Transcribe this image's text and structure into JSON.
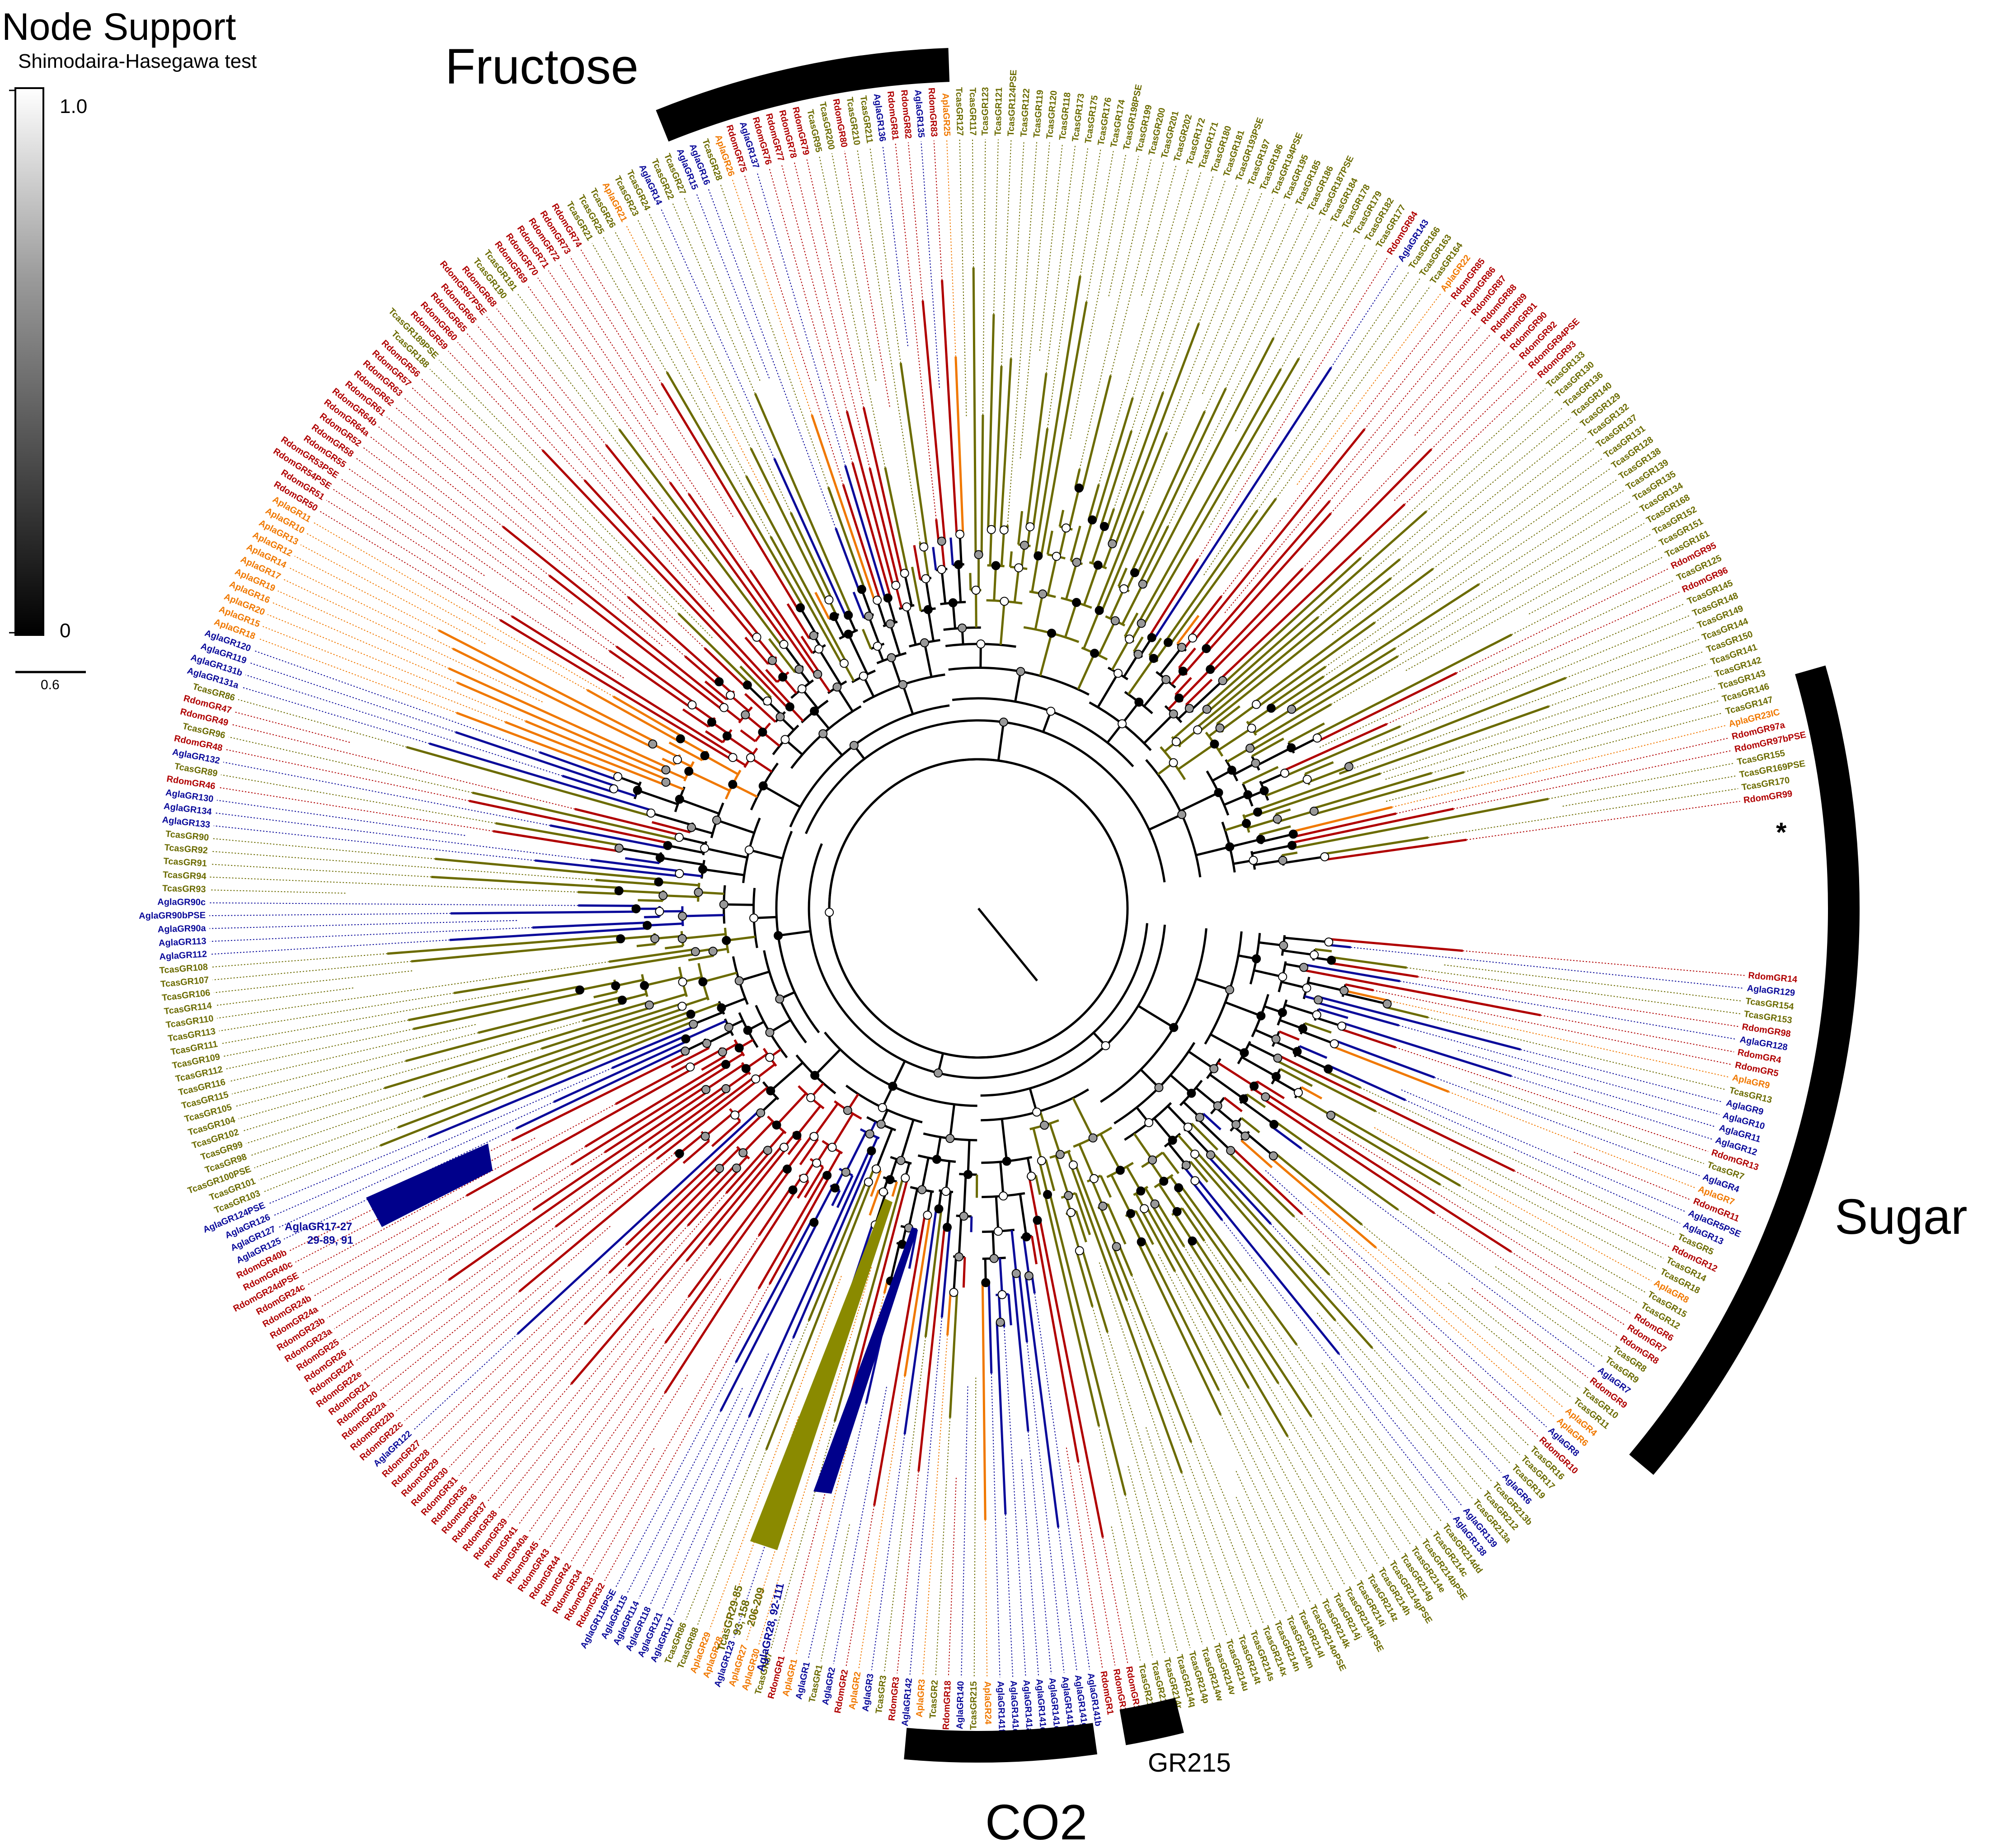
{
  "legend": {
    "title": "Node Support",
    "subtitle": "Shimodaira-Hasegawa test",
    "max_label": "1.0",
    "min_label": "0",
    "branch_scale": "0.6"
  },
  "colors": {
    "Tcas": "#6b6b00",
    "Rdom": "#b00000",
    "Agla": "#0a0a9a",
    "Apla": "#f07800",
    "backbone": "#000000",
    "collapsed_tcas": "#8a8a00",
    "collapsed_agla": "#00008b"
  },
  "clades": {
    "fructose": "Fructose",
    "sugar": "Sugar",
    "co2": "CO2",
    "gr215": "GR215"
  },
  "collapsed": {
    "agla": {
      "line1": "AglaGR17-27",
      "line2": "29-89, 91"
    },
    "tcas": {
      "line1": "TcasGR29-85",
      "line2": "93, 158",
      "line3": "206-209"
    },
    "agla2": {
      "line1": "AglaGR28, 92-111"
    }
  },
  "asterisk_label": "*",
  "leaves": [
    {
      "t": "RdomGR14",
      "g": "R"
    },
    {
      "t": "AglaGR129",
      "g": "A"
    },
    {
      "t": "TcasGR154",
      "g": "T"
    },
    {
      "t": "TcasGR153",
      "g": "T"
    },
    {
      "t": "RdomGR98",
      "g": "R"
    },
    {
      "t": "AglaGR128",
      "g": "A"
    },
    {
      "t": "RdomGR4",
      "g": "R"
    },
    {
      "t": "RdomGR5",
      "g": "R"
    },
    {
      "t": "AplaGR9",
      "g": "P"
    },
    {
      "t": "TcasGR13",
      "g": "T"
    },
    {
      "t": "AglaGR9",
      "g": "A"
    },
    {
      "t": "AglaGR10",
      "g": "A"
    },
    {
      "t": "AglaGR11",
      "g": "A"
    },
    {
      "t": "AglaGR12",
      "g": "A"
    },
    {
      "t": "RdomGR13",
      "g": "R"
    },
    {
      "t": "TcasGR7",
      "g": "T"
    },
    {
      "t": "AglaGR4",
      "g": "A"
    },
    {
      "t": "AplaGR7",
      "g": "P"
    },
    {
      "t": "RdomGR11",
      "g": "R"
    },
    {
      "t": "AglaGR5PSE",
      "g": "A"
    },
    {
      "t": "AglaGR13",
      "g": "A"
    },
    {
      "t": "TcasGR5",
      "g": "T"
    },
    {
      "t": "RdomGR12",
      "g": "R"
    },
    {
      "t": "TcasGR14",
      "g": "T"
    },
    {
      "t": "TcasGR18",
      "g": "T"
    },
    {
      "t": "AplaGR8",
      "g": "P"
    },
    {
      "t": "TcasGR15",
      "g": "T"
    },
    {
      "t": "TcasGR12",
      "g": "T"
    },
    {
      "t": "RdomGR6",
      "g": "R"
    },
    {
      "t": "RdomGR7",
      "g": "R"
    },
    {
      "t": "RdomGR8",
      "g": "R"
    },
    {
      "t": "TcasGR8",
      "g": "T"
    },
    {
      "t": "TcasGR9",
      "g": "T"
    },
    {
      "t": "AglaGR7",
      "g": "A"
    },
    {
      "t": "RdomGR9",
      "g": "R"
    },
    {
      "t": "TcasGR10",
      "g": "T"
    },
    {
      "t": "TcasGR11",
      "g": "T"
    },
    {
      "t": "AplaGR4",
      "g": "P"
    },
    {
      "t": "AplaGR6",
      "g": "P"
    },
    {
      "t": "AglaGR8",
      "g": "A"
    },
    {
      "t": "RdomGR10",
      "g": "R"
    },
    {
      "t": "TcasGR16",
      "g": "T"
    },
    {
      "t": "TcasGR17",
      "g": "T"
    },
    {
      "t": "TcasGR19",
      "g": "T"
    },
    {
      "t": "AglaGR6",
      "g": "A"
    },
    {
      "t": "TcasGR213b",
      "g": "T"
    },
    {
      "t": "TcasGR212",
      "g": "T"
    },
    {
      "t": "TcasGR213a",
      "g": "T"
    },
    {
      "t": "AglaGR139",
      "g": "A"
    },
    {
      "t": "AglaGR138",
      "g": "A"
    },
    {
      "t": "TcasGR214dd",
      "g": "T"
    },
    {
      "t": "TcasGR214c",
      "g": "T"
    },
    {
      "t": "TcasGR214bPSE",
      "g": "T"
    },
    {
      "t": "TcasGR214e",
      "g": "T"
    },
    {
      "t": "TcasGR214g",
      "g": "T"
    },
    {
      "t": "TcasGR214gPSE",
      "g": "T"
    },
    {
      "t": "TcasGR214h",
      "g": "T"
    },
    {
      "t": "TcasGR214z",
      "g": "T"
    },
    {
      "t": "TcasGR214i",
      "g": "T"
    },
    {
      "t": "TcasGR214hPSE",
      "g": "T"
    },
    {
      "t": "TcasGR214j",
      "g": "T"
    },
    {
      "t": "TcasGR214k",
      "g": "T"
    },
    {
      "t": "TcasGR214oPSE",
      "g": "T"
    },
    {
      "t": "TcasGR214l",
      "g": "T"
    },
    {
      "t": "TcasGR214m",
      "g": "T"
    },
    {
      "t": "TcasGR214n",
      "g": "T"
    },
    {
      "t": "TcasGR214x",
      "g": "T"
    },
    {
      "t": "TcasGR214s",
      "g": "T"
    },
    {
      "t": "TcasGR214t",
      "g": "T"
    },
    {
      "t": "TcasGR214u",
      "g": "T"
    },
    {
      "t": "TcasGR214v",
      "g": "T"
    },
    {
      "t": "TcasGR214w",
      "g": "T"
    },
    {
      "t": "TcasGR214p",
      "g": "T"
    },
    {
      "t": "TcasGR214q",
      "g": "T"
    },
    {
      "t": "TcasGR214r",
      "g": "T"
    },
    {
      "t": "TcasGR214a",
      "g": "T"
    },
    {
      "t": "TcasGR214yPSE",
      "g": "T"
    },
    {
      "t": "RdomGR15",
      "g": "R"
    },
    {
      "t": "RdomGR16",
      "g": "R"
    },
    {
      "t": "RdomGR1",
      "g": "R"
    },
    {
      "t": "AglaGR141b",
      "g": "A"
    },
    {
      "t": "AglaGR141g",
      "g": "A"
    },
    {
      "t": "AglaGR141h",
      "g": "A"
    },
    {
      "t": "AglaGR141c",
      "g": "A"
    },
    {
      "t": "AglaGR141d",
      "g": "A"
    },
    {
      "t": "AglaGR141a",
      "g": "A"
    },
    {
      "t": "AglaGR141e",
      "g": "A"
    },
    {
      "t": "AglaGR141f",
      "g": "A"
    },
    {
      "t": "AplaGR24",
      "g": "P"
    },
    {
      "t": "TcasGR215",
      "g": "T"
    },
    {
      "t": "AglaGR140",
      "g": "A"
    },
    {
      "t": "RdomGR18",
      "g": "R"
    },
    {
      "t": "TcasGR2",
      "g": "T"
    },
    {
      "t": "AplaGR3",
      "g": "P"
    },
    {
      "t": "AglaGR142",
      "g": "A"
    },
    {
      "t": "RdomGR3",
      "g": "R"
    },
    {
      "t": "TcasGR3",
      "g": "T"
    },
    {
      "t": "AglaGR3",
      "g": "A"
    },
    {
      "t": "AplaGR2",
      "g": "P"
    },
    {
      "t": "RdomGR2",
      "g": "R"
    },
    {
      "t": "AglaGR2",
      "g": "A"
    },
    {
      "t": "TcasGR1",
      "g": "T"
    },
    {
      "t": "AglaGR1",
      "g": "A"
    },
    {
      "t": "AplaGR1",
      "g": "P"
    },
    {
      "t": "RdomGR1",
      "g": "R"
    },
    {
      "t": "TcasGR87",
      "g": "T"
    },
    {
      "t": "AplaGR30",
      "g": "P"
    },
    {
      "t": "AplaGR27",
      "g": "P"
    },
    {
      "t": "AglaGR123",
      "g": "A"
    },
    {
      "t": "AplaGR28",
      "g": "P"
    },
    {
      "t": "AplaGR29",
      "g": "P"
    },
    {
      "t": "TcasGR88",
      "g": "T"
    },
    {
      "t": "TcasGR86",
      "g": "T"
    },
    {
      "t": "AglaGR117",
      "g": "A"
    },
    {
      "t": "AglaGR121",
      "g": "A"
    },
    {
      "t": "AglaGR118",
      "g": "A"
    },
    {
      "t": "AglaGR114",
      "g": "A"
    },
    {
      "t": "AglaGR115",
      "g": "A"
    },
    {
      "t": "AglaGR116PSE",
      "g": "A"
    },
    {
      "t": "RdomGR32",
      "g": "R"
    },
    {
      "t": "RdomGR33",
      "g": "R"
    },
    {
      "t": "RdomGR34",
      "g": "R"
    },
    {
      "t": "RdomGR42",
      "g": "R"
    },
    {
      "t": "RdomGR44",
      "g": "R"
    },
    {
      "t": "RdomGR43",
      "g": "R"
    },
    {
      "t": "RdomGR45",
      "g": "R"
    },
    {
      "t": "RdomGR40a",
      "g": "R"
    },
    {
      "t": "RdomGR41",
      "g": "R"
    },
    {
      "t": "RdomGR39",
      "g": "R"
    },
    {
      "t": "RdomGR38",
      "g": "R"
    },
    {
      "t": "RdomGR37",
      "g": "R"
    },
    {
      "t": "RdomGR36",
      "g": "R"
    },
    {
      "t": "RdomGR35",
      "g": "R"
    },
    {
      "t": "RdomGR31",
      "g": "R"
    },
    {
      "t": "RdomGR30",
      "g": "R"
    },
    {
      "t": "RdomGR29",
      "g": "R"
    },
    {
      "t": "RdomGR28",
      "g": "R"
    },
    {
      "t": "RdomGR27",
      "g": "R"
    },
    {
      "t": "AglaGR122",
      "g": "A"
    },
    {
      "t": "RdomGR22c",
      "g": "R"
    },
    {
      "t": "RdomGR22b",
      "g": "R"
    },
    {
      "t": "RdomGR22a",
      "g": "R"
    },
    {
      "t": "RdomGR20",
      "g": "R"
    },
    {
      "t": "RdomGR21",
      "g": "R"
    },
    {
      "t": "RdomGR22e",
      "g": "R"
    },
    {
      "t": "RdomGR22f",
      "g": "R"
    },
    {
      "t": "RdomGR26",
      "g": "R"
    },
    {
      "t": "RdomGR25",
      "g": "R"
    },
    {
      "t": "RdomGR23a",
      "g": "R"
    },
    {
      "t": "RdomGR23b",
      "g": "R"
    },
    {
      "t": "RdomGR24a",
      "g": "R"
    },
    {
      "t": "RdomGR24b",
      "g": "R"
    },
    {
      "t": "RdomGR24c",
      "g": "R"
    },
    {
      "t": "RdomGR24dPSE",
      "g": "R"
    },
    {
      "t": "RdomGR40c",
      "g": "R"
    },
    {
      "t": "RdomGR40b",
      "g": "R"
    },
    {
      "t": "AglaGR125",
      "g": "A"
    },
    {
      "t": "AglaGR127",
      "g": "A"
    },
    {
      "t": "AglaGR126",
      "g": "A"
    },
    {
      "t": "AglaGR124PSE",
      "g": "A"
    },
    {
      "t": "TcasGR103",
      "g": "T"
    },
    {
      "t": "TcasGR101",
      "g": "T"
    },
    {
      "t": "TcasGR100PSE",
      "g": "T"
    },
    {
      "t": "TcasGR98",
      "g": "T"
    },
    {
      "t": "TcasGR99",
      "g": "T"
    },
    {
      "t": "TcasGR102",
      "g": "T"
    },
    {
      "t": "TcasGR104",
      "g": "T"
    },
    {
      "t": "TcasGR105",
      "g": "T"
    },
    {
      "t": "TcasGR115",
      "g": "T"
    },
    {
      "t": "TcasGR116",
      "g": "T"
    },
    {
      "t": "TcasGR112",
      "g": "T"
    },
    {
      "t": "TcasGR109",
      "g": "T"
    },
    {
      "t": "TcasGR111",
      "g": "T"
    },
    {
      "t": "TcasGR113",
      "g": "T"
    },
    {
      "t": "TcasGR110",
      "g": "T"
    },
    {
      "t": "TcasGR114",
      "g": "T"
    },
    {
      "t": "TcasGR106",
      "g": "T"
    },
    {
      "t": "TcasGR107",
      "g": "T"
    },
    {
      "t": "TcasGR108",
      "g": "T"
    },
    {
      "t": "AglaGR112",
      "g": "A"
    },
    {
      "t": "AglaGR113",
      "g": "A"
    },
    {
      "t": "AglaGR90a",
      "g": "A"
    },
    {
      "t": "AglaGR90bPSE",
      "g": "A"
    },
    {
      "t": "AglaGR90c",
      "g": "A"
    },
    {
      "t": "TcasGR93",
      "g": "T"
    },
    {
      "t": "TcasGR94",
      "g": "T"
    },
    {
      "t": "TcasGR91",
      "g": "T"
    },
    {
      "t": "TcasGR92",
      "g": "T"
    },
    {
      "t": "TcasGR90",
      "g": "T"
    },
    {
      "t": "AglaGR133",
      "g": "A"
    },
    {
      "t": "AglaGR134",
      "g": "A"
    },
    {
      "t": "AglaGR130",
      "g": "A"
    },
    {
      "t": "RdomGR46",
      "g": "R"
    },
    {
      "t": "TcasGR89",
      "g": "T"
    },
    {
      "t": "AglaGR132",
      "g": "A"
    },
    {
      "t": "RdomGR48",
      "g": "R"
    },
    {
      "t": "TcasGR96",
      "g": "T"
    },
    {
      "t": "RdomGR49",
      "g": "R"
    },
    {
      "t": "RdomGR47",
      "g": "R"
    },
    {
      "t": "TcasGR86",
      "g": "T"
    },
    {
      "t": "AglaGR131a",
      "g": "A"
    },
    {
      "t": "AglaGR131b",
      "g": "A"
    },
    {
      "t": "AglaGR119",
      "g": "A"
    },
    {
      "t": "AglaGR120",
      "g": "A"
    },
    {
      "t": "AplaGR18",
      "g": "P"
    },
    {
      "t": "AplaGR15",
      "g": "P"
    },
    {
      "t": "AplaGR20",
      "g": "P"
    },
    {
      "t": "AplaGR16",
      "g": "P"
    },
    {
      "t": "AplaGR19",
      "g": "P"
    },
    {
      "t": "AplaGR17",
      "g": "P"
    },
    {
      "t": "AplaGR14",
      "g": "P"
    },
    {
      "t": "AplaGR12",
      "g": "P"
    },
    {
      "t": "AplaGR13",
      "g": "P"
    },
    {
      "t": "AplaGR10",
      "g": "P"
    },
    {
      "t": "AplaGR11",
      "g": "P"
    },
    {
      "t": "RdomGR50",
      "g": "R"
    },
    {
      "t": "RdomGR51",
      "g": "R"
    },
    {
      "t": "RdomGR54PSE",
      "g": "R"
    },
    {
      "t": "RdomGR53PSE",
      "g": "R"
    },
    {
      "t": "RdomGR55",
      "g": "R"
    },
    {
      "t": "RdomGR58",
      "g": "R"
    },
    {
      "t": "RdomGR52",
      "g": "R"
    },
    {
      "t": "RdomGR64a",
      "g": "R"
    },
    {
      "t": "RdomGR64b",
      "g": "R"
    },
    {
      "t": "RdomGR61",
      "g": "R"
    },
    {
      "t": "RdomGR62",
      "g": "R"
    },
    {
      "t": "RdomGR63",
      "g": "R"
    },
    {
      "t": "RdomGR57",
      "g": "R"
    },
    {
      "t": "RdomGR56",
      "g": "R"
    },
    {
      "t": "TcasGR188",
      "g": "T"
    },
    {
      "t": "TcasGR189PSE",
      "g": "T"
    },
    {
      "t": "RdomGR59",
      "g": "R"
    },
    {
      "t": "RdomGR60",
      "g": "R"
    },
    {
      "t": "RdomGR65",
      "g": "R"
    },
    {
      "t": "RdomGR66",
      "g": "R"
    },
    {
      "t": "RdomGR67PSE",
      "g": "R"
    },
    {
      "t": "RdomGR68",
      "g": "R"
    },
    {
      "t": "TcasGR190",
      "g": "T"
    },
    {
      "t": "TcasGR191",
      "g": "T"
    },
    {
      "t": "RdomGR69",
      "g": "R"
    },
    {
      "t": "RdomGR70",
      "g": "R"
    },
    {
      "t": "RdomGR71",
      "g": "R"
    },
    {
      "t": "RdomGR72",
      "g": "R"
    },
    {
      "t": "RdomGR73",
      "g": "R"
    },
    {
      "t": "RdomGR74",
      "g": "R"
    },
    {
      "t": "TcasGR21",
      "g": "T"
    },
    {
      "t": "TcasGR25",
      "g": "T"
    },
    {
      "t": "TcasGR26",
      "g": "T"
    },
    {
      "t": "AplaGR21",
      "g": "P"
    },
    {
      "t": "TcasGR23",
      "g": "T"
    },
    {
      "t": "TcasGR24",
      "g": "T"
    },
    {
      "t": "AglaGR14",
      "g": "A"
    },
    {
      "t": "TcasGR22",
      "g": "T"
    },
    {
      "t": "TcasGR27",
      "g": "T"
    },
    {
      "t": "AglaGR15",
      "g": "A"
    },
    {
      "t": "AglaGR16",
      "g": "A"
    },
    {
      "t": "TcasGR28",
      "g": "T"
    },
    {
      "t": "AplaGR26",
      "g": "P"
    },
    {
      "t": "RdomGR75",
      "g": "R"
    },
    {
      "t": "AglaGR137",
      "g": "A"
    },
    {
      "t": "RdomGR76",
      "g": "R"
    },
    {
      "t": "RdomGR77",
      "g": "R"
    },
    {
      "t": "RdomGR78",
      "g": "R"
    },
    {
      "t": "RdomGR79",
      "g": "R"
    },
    {
      "t": "TcasGR95",
      "g": "T"
    },
    {
      "t": "TcasGR200",
      "g": "T"
    },
    {
      "t": "RdomGR80",
      "g": "R"
    },
    {
      "t": "TcasGR210",
      "g": "T"
    },
    {
      "t": "TcasGR211",
      "g": "T"
    },
    {
      "t": "AglaGR136",
      "g": "A"
    },
    {
      "t": "RdomGR81",
      "g": "R"
    },
    {
      "t": "RdomGR82",
      "g": "R"
    },
    {
      "t": "AglaGR135",
      "g": "A"
    },
    {
      "t": "RdomGR83",
      "g": "R"
    },
    {
      "t": "AplaGR25",
      "g": "P"
    },
    {
      "t": "TcasGR127",
      "g": "T"
    },
    {
      "t": "TcasGR117",
      "g": "T"
    },
    {
      "t": "TcasGR123",
      "g": "T"
    },
    {
      "t": "TcasGR121",
      "g": "T"
    },
    {
      "t": "TcasGR124PSE",
      "g": "T"
    },
    {
      "t": "TcasGR122",
      "g": "T"
    },
    {
      "t": "TcasGR119",
      "g": "T"
    },
    {
      "t": "TcasGR120",
      "g": "T"
    },
    {
      "t": "TcasGR118",
      "g": "T"
    },
    {
      "t": "TcasGR173",
      "g": "T"
    },
    {
      "t": "TcasGR175",
      "g": "T"
    },
    {
      "t": "TcasGR176",
      "g": "T"
    },
    {
      "t": "TcasGR174",
      "g": "T"
    },
    {
      "t": "TcasGR198PSE",
      "g": "T"
    },
    {
      "t": "TcasGR199",
      "g": "T"
    },
    {
      "t": "TcasGR200",
      "g": "T"
    },
    {
      "t": "TcasGR201",
      "g": "T"
    },
    {
      "t": "TcasGR202",
      "g": "T"
    },
    {
      "t": "TcasGR172",
      "g": "T"
    },
    {
      "t": "TcasGR171",
      "g": "T"
    },
    {
      "t": "TcasGR180",
      "g": "T"
    },
    {
      "t": "TcasGR181",
      "g": "T"
    },
    {
      "t": "TcasGR193PSE",
      "g": "T"
    },
    {
      "t": "TcasGR197",
      "g": "T"
    },
    {
      "t": "TcasGR196",
      "g": "T"
    },
    {
      "t": "TcasGR194PSE",
      "g": "T"
    },
    {
      "t": "TcasGR195",
      "g": "T"
    },
    {
      "t": "TcasGR185",
      "g": "T"
    },
    {
      "t": "TcasGR186",
      "g": "T"
    },
    {
      "t": "TcasGR187PSE",
      "g": "T"
    },
    {
      "t": "TcasGR184",
      "g": "T"
    },
    {
      "t": "TcasGR178",
      "g": "T"
    },
    {
      "t": "TcasGR179",
      "g": "T"
    },
    {
      "t": "TcasGR182",
      "g": "T"
    },
    {
      "t": "TcasGR177",
      "g": "T"
    },
    {
      "t": "RdomGR84",
      "g": "R"
    },
    {
      "t": "AglaGR143",
      "g": "A"
    },
    {
      "t": "TcasGR166",
      "g": "T"
    },
    {
      "t": "TcasGR163",
      "g": "T"
    },
    {
      "t": "TcasGR164",
      "g": "T"
    },
    {
      "t": "AplaGR22",
      "g": "P"
    },
    {
      "t": "RdomGR85",
      "g": "R"
    },
    {
      "t": "RdomGR86",
      "g": "R"
    },
    {
      "t": "RdomGR87",
      "g": "R"
    },
    {
      "t": "RdomGR88",
      "g": "R"
    },
    {
      "t": "RdomGR89",
      "g": "R"
    },
    {
      "t": "RdomGR91",
      "g": "R"
    },
    {
      "t": "RdomGR90",
      "g": "R"
    },
    {
      "t": "RdomGR92",
      "g": "R"
    },
    {
      "t": "RdomGR94PSE",
      "g": "R"
    },
    {
      "t": "RdomGR93",
      "g": "R"
    },
    {
      "t": "TcasGR133",
      "g": "T"
    },
    {
      "t": "TcasGR130",
      "g": "T"
    },
    {
      "t": "TcasGR136",
      "g": "T"
    },
    {
      "t": "TcasGR140",
      "g": "T"
    },
    {
      "t": "TcasGR129",
      "g": "T"
    },
    {
      "t": "TcasGR132",
      "g": "T"
    },
    {
      "t": "TcasGR137",
      "g": "T"
    },
    {
      "t": "TcasGR131",
      "g": "T"
    },
    {
      "t": "TcasGR128",
      "g": "T"
    },
    {
      "t": "TcasGR138",
      "g": "T"
    },
    {
      "t": "TcasGR139",
      "g": "T"
    },
    {
      "t": "TcasGR135",
      "g": "T"
    },
    {
      "t": "TcasGR134",
      "g": "T"
    },
    {
      "t": "TcasGR168",
      "g": "T"
    },
    {
      "t": "TcasGR152",
      "g": "T"
    },
    {
      "t": "TcasGR151",
      "g": "T"
    },
    {
      "t": "TcasGR161",
      "g": "T"
    },
    {
      "t": "RdomGR95",
      "g": "R"
    },
    {
      "t": "TcasGR125",
      "g": "T"
    },
    {
      "t": "RdomGR96",
      "g": "R"
    },
    {
      "t": "TcasGR145",
      "g": "T"
    },
    {
      "t": "TcasGR148",
      "g": "T"
    },
    {
      "t": "TcasGR149",
      "g": "T"
    },
    {
      "t": "TcasGR144",
      "g": "T"
    },
    {
      "t": "TcasGR150",
      "g": "T"
    },
    {
      "t": "TcasGR141",
      "g": "T"
    },
    {
      "t": "TcasGR142",
      "g": "T"
    },
    {
      "t": "TcasGR143",
      "g": "T"
    },
    {
      "t": "TcasGR146",
      "g": "T"
    },
    {
      "t": "TcasGR147",
      "g": "T"
    },
    {
      "t": "AplaGR23IC",
      "g": "P"
    },
    {
      "t": "RdomGR97a",
      "g": "R"
    },
    {
      "t": "RdomGR97bPSE",
      "g": "R"
    },
    {
      "t": "TcasGR155",
      "g": "T"
    },
    {
      "t": "TcasGR169PSE",
      "g": "T"
    },
    {
      "t": "TcasGR170",
      "g": "T"
    },
    {
      "t": "RdomGR99",
      "g": "R"
    }
  ]
}
